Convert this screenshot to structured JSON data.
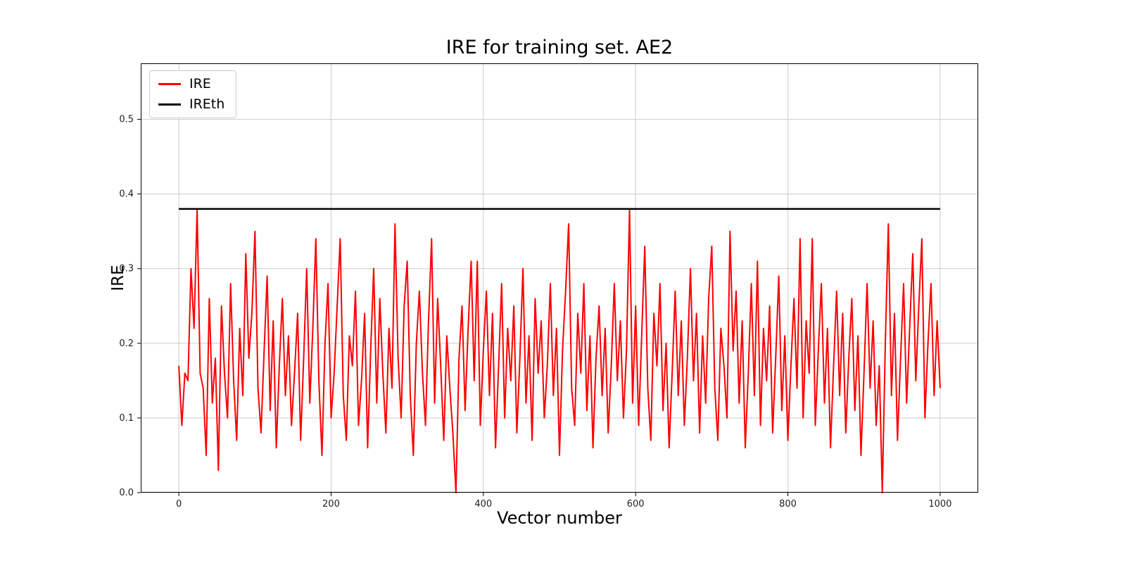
{
  "title": "IRE for training set. AE2",
  "chart_data": {
    "type": "line",
    "title": "IRE for training set. AE2",
    "xlabel": "Vector number",
    "ylabel": "IRE",
    "xlim": [
      -50,
      1050
    ],
    "ylim": [
      0,
      0.575
    ],
    "xticks": [
      "0",
      "200",
      "400",
      "600",
      "800",
      "1000"
    ],
    "yticks": [
      "0.0",
      "0.1",
      "0.2",
      "0.3",
      "0.4",
      "0.5"
    ],
    "grid": true,
    "grid_color": "#cccccc",
    "legend_position": "upper-left",
    "x_start": 0,
    "x_step": 4,
    "series": [
      {
        "name": "IRE",
        "color": "#ff0000",
        "values": [
          0.17,
          0.09,
          0.16,
          0.15,
          0.3,
          0.22,
          0.38,
          0.16,
          0.14,
          0.05,
          0.26,
          0.12,
          0.18,
          0.03,
          0.25,
          0.16,
          0.1,
          0.28,
          0.15,
          0.07,
          0.22,
          0.13,
          0.32,
          0.18,
          0.24,
          0.35,
          0.14,
          0.08,
          0.19,
          0.29,
          0.11,
          0.23,
          0.06,
          0.17,
          0.26,
          0.13,
          0.21,
          0.09,
          0.16,
          0.24,
          0.07,
          0.18,
          0.3,
          0.12,
          0.22,
          0.34,
          0.15,
          0.05,
          0.2,
          0.28,
          0.1,
          0.16,
          0.25,
          0.34,
          0.13,
          0.07,
          0.21,
          0.17,
          0.27,
          0.09,
          0.15,
          0.24,
          0.06,
          0.19,
          0.3,
          0.12,
          0.26,
          0.16,
          0.08,
          0.22,
          0.14,
          0.36,
          0.18,
          0.1,
          0.25,
          0.31,
          0.13,
          0.05,
          0.2,
          0.27,
          0.16,
          0.09,
          0.23,
          0.34,
          0.12,
          0.26,
          0.17,
          0.07,
          0.21,
          0.14,
          0.08,
          0.0,
          0.18,
          0.25,
          0.11,
          0.22,
          0.31,
          0.15,
          0.31,
          0.09,
          0.19,
          0.27,
          0.13,
          0.24,
          0.06,
          0.17,
          0.28,
          0.1,
          0.22,
          0.15,
          0.25,
          0.08,
          0.18,
          0.3,
          0.12,
          0.21,
          0.07,
          0.26,
          0.16,
          0.23,
          0.1,
          0.17,
          0.28,
          0.13,
          0.22,
          0.05,
          0.19,
          0.27,
          0.36,
          0.14,
          0.09,
          0.24,
          0.16,
          0.28,
          0.11,
          0.21,
          0.06,
          0.18,
          0.25,
          0.13,
          0.22,
          0.08,
          0.17,
          0.28,
          0.15,
          0.23,
          0.1,
          0.19,
          0.38,
          0.12,
          0.25,
          0.09,
          0.21,
          0.33,
          0.14,
          0.07,
          0.24,
          0.17,
          0.28,
          0.11,
          0.2,
          0.06,
          0.16,
          0.27,
          0.13,
          0.23,
          0.09,
          0.18,
          0.3,
          0.15,
          0.24,
          0.08,
          0.21,
          0.12,
          0.26,
          0.33,
          0.14,
          0.07,
          0.22,
          0.17,
          0.1,
          0.35,
          0.19,
          0.27,
          0.12,
          0.23,
          0.06,
          0.16,
          0.28,
          0.13,
          0.31,
          0.09,
          0.22,
          0.15,
          0.25,
          0.08,
          0.18,
          0.29,
          0.11,
          0.21,
          0.07,
          0.17,
          0.26,
          0.14,
          0.34,
          0.1,
          0.23,
          0.16,
          0.34,
          0.09,
          0.19,
          0.28,
          0.12,
          0.22,
          0.06,
          0.17,
          0.27,
          0.13,
          0.24,
          0.08,
          0.18,
          0.26,
          0.11,
          0.21,
          0.05,
          0.16,
          0.28,
          0.14,
          0.23,
          0.09,
          0.17,
          0.0,
          0.2,
          0.36,
          0.13,
          0.24,
          0.07,
          0.18,
          0.28,
          0.12,
          0.22,
          0.32,
          0.15,
          0.25,
          0.34,
          0.1,
          0.2,
          0.28,
          0.13,
          0.23,
          0.14
        ]
      }
    ],
    "threshold": {
      "name": "IREth",
      "value": 0.38,
      "color": "#000000",
      "x_range": [
        0,
        1000
      ]
    }
  }
}
